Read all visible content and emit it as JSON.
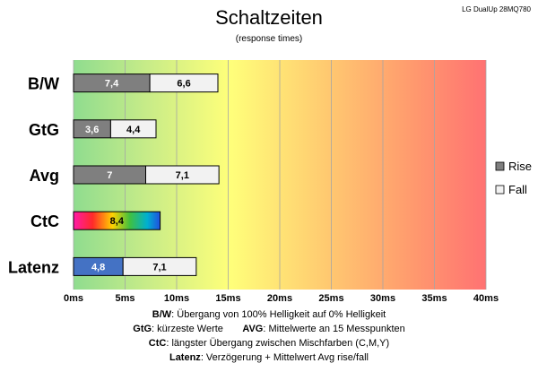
{
  "chart_data": {
    "type": "bar",
    "orientation": "horizontal",
    "stacked": true,
    "title": "Schaltzeiten",
    "subtitle": "(response times)",
    "corner_label": "LG DualUp 28MQ780",
    "categories": [
      "B/W",
      "GtG",
      "Avg",
      "CtC",
      "Latenz"
    ],
    "series": [
      {
        "name": "Rise",
        "values": [
          7.4,
          3.6,
          7.0,
          8.4,
          4.8
        ],
        "labels": [
          "7,4",
          "3,6",
          "7",
          "8,4",
          "4,8"
        ],
        "color": "#7f7f7f"
      },
      {
        "name": "Fall",
        "values": [
          6.6,
          4.4,
          7.1,
          null,
          7.1
        ],
        "labels": [
          "6,6",
          "4,4",
          "7,1",
          "",
          "7,1"
        ],
        "color": "#f2f2f2"
      }
    ],
    "special_colors": {
      "CtC": "rainbow",
      "Latenz": "#4472c4"
    },
    "xlim": [
      0,
      40
    ],
    "xticks": [
      "0ms",
      "5ms",
      "10ms",
      "15ms",
      "20ms",
      "25ms",
      "30ms",
      "35ms",
      "40ms"
    ],
    "x_tick_step": 5,
    "grid": true,
    "background": "gradient green-yellow-orange-red",
    "legend": {
      "position": "right",
      "entries": [
        "Rise",
        "Fall"
      ]
    }
  },
  "notes": [
    {
      "key": "B/W",
      "text": ":  Übergang von 100% Helligkeit auf 0% Helligkeit"
    },
    {
      "key": "GtG",
      "text": ": kürzeste  Werte",
      "key2": "AVG",
      "text2": ": Mittelwerte  an 15 Messpunkten"
    },
    {
      "key": "CtC",
      "text": ": längster Übergang  zwischen Mischfarben  (C,M,Y)"
    },
    {
      "key": "Latenz",
      "text": ": Verzögerung  + Mittelwert Avg rise/fall"
    }
  ]
}
